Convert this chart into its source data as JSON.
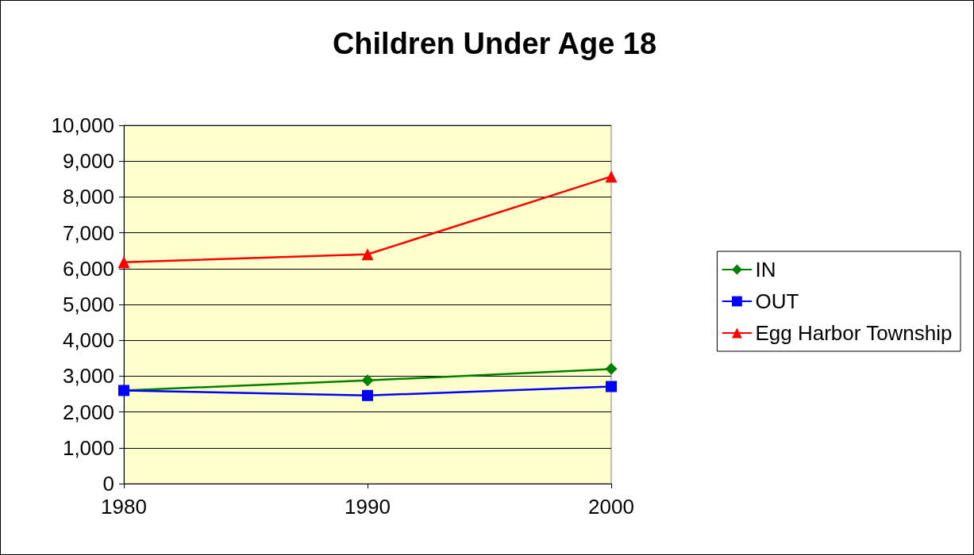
{
  "chart_data": {
    "type": "line",
    "title": "Children Under Age 18",
    "categories": [
      "1980",
      "1990",
      "2000"
    ],
    "series": [
      {
        "name": "IN",
        "color": "#008000",
        "marker": "diamond",
        "values": [
          2600,
          2880,
          3200
        ]
      },
      {
        "name": "OUT",
        "color": "#0000ff",
        "marker": "square",
        "values": [
          2600,
          2460,
          2710
        ]
      },
      {
        "name": "Egg Harbor Township",
        "color": "#ff0000",
        "marker": "triangle",
        "values": [
          6180,
          6400,
          8570
        ]
      }
    ],
    "ylim": [
      0,
      10000
    ],
    "yticks": [
      {
        "value": 0,
        "label": "0"
      },
      {
        "value": 1000,
        "label": "1,000"
      },
      {
        "value": 2000,
        "label": "2,000"
      },
      {
        "value": 3000,
        "label": "3,000"
      },
      {
        "value": 4000,
        "label": "4,000"
      },
      {
        "value": 5000,
        "label": "5,000"
      },
      {
        "value": 6000,
        "label": "6,000"
      },
      {
        "value": 7000,
        "label": "7,000"
      },
      {
        "value": 8000,
        "label": "8,000"
      },
      {
        "value": 9000,
        "label": "9,000"
      },
      {
        "value": 10000,
        "label": "10,000"
      }
    ],
    "grid": "y",
    "legend": "right",
    "line_style": "solid"
  }
}
